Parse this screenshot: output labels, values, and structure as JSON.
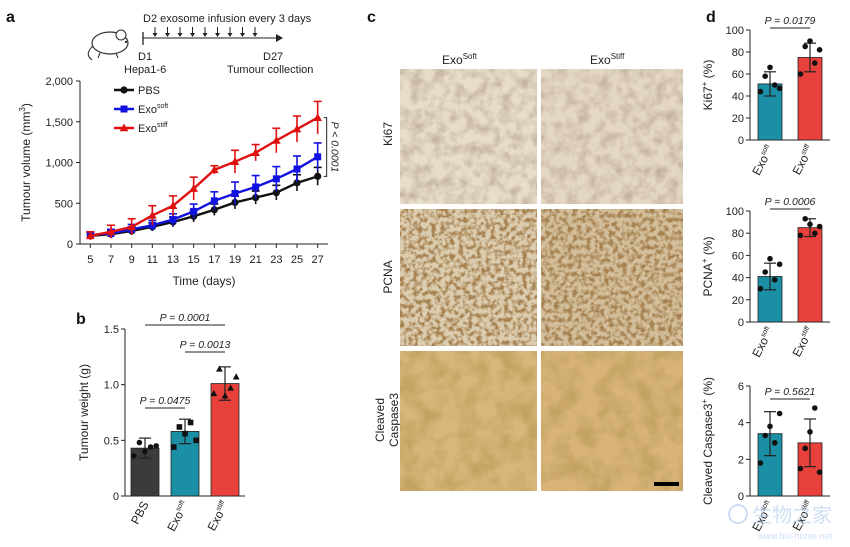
{
  "panels": {
    "a": "a",
    "b": "b",
    "c": "c",
    "d": "d"
  },
  "schema_a": {
    "top_text": "D2 exosome infusion every 3 days",
    "start_label": "D1",
    "start_sub": "Hepa1-6",
    "end_label": "D27",
    "end_sub": "Tumour collection"
  },
  "micrograph": {
    "col_labels": [
      "Exo",
      "Exo"
    ],
    "col_sups": [
      "Soft",
      "Stiff"
    ],
    "row_labels": [
      "Ki67",
      "PCNA",
      "Cleaved Caspase3"
    ],
    "row_label_lines": [
      [
        "Ki67"
      ],
      [
        "PCNA"
      ],
      [
        "Cleaved",
        "Caspase3"
      ]
    ]
  },
  "watermark": {
    "text": "生物之家",
    "url": "www.bio-home.net"
  },
  "chart_data": [
    {
      "id": "a",
      "type": "line",
      "xlabel": "Time (days)",
      "ylabel": "Tumour volume (mm",
      "ylabel_sup": "3",
      "ylabel_tail": ")",
      "ylim": [
        0,
        2000
      ],
      "yticks": [
        "0",
        "500",
        "1,000",
        "1,500",
        "2,000"
      ],
      "ytick_values": [
        0,
        500,
        1000,
        1500,
        2000
      ],
      "x": [
        5,
        7,
        9,
        11,
        13,
        15,
        17,
        19,
        21,
        23,
        25,
        27
      ],
      "series": [
        {
          "name": "PBS",
          "name_sup": "",
          "color": "#111111",
          "marker": "circle",
          "values": [
            100,
            120,
            160,
            210,
            270,
            340,
            420,
            510,
            570,
            630,
            750,
            830
          ],
          "err": [
            40,
            40,
            50,
            50,
            60,
            70,
            70,
            80,
            80,
            90,
            100,
            110
          ]
        },
        {
          "name": "Exo",
          "name_sup": "soft",
          "color": "#1212e0",
          "marker": "square",
          "values": [
            110,
            130,
            180,
            230,
            300,
            400,
            530,
            620,
            700,
            800,
            920,
            1070
          ],
          "err": [
            40,
            50,
            60,
            60,
            70,
            90,
            110,
            140,
            140,
            150,
            160,
            170
          ]
        },
        {
          "name": "Exo",
          "name_sup": "stiff",
          "color": "#e01010",
          "marker": "triangle",
          "values": [
            100,
            150,
            210,
            350,
            470,
            680,
            910,
            1010,
            1120,
            1270,
            1410,
            1550
          ],
          "err": [
            50,
            80,
            100,
            120,
            120,
            140,
            50,
            140,
            100,
            150,
            160,
            200
          ]
        }
      ],
      "annotation": "P < 0.0001"
    },
    {
      "id": "b",
      "type": "bar",
      "ylabel": "Tumour weight (g)",
      "ylim": [
        0,
        1.5
      ],
      "yticks": [
        "0",
        "0.5",
        "1.0",
        "1.5"
      ],
      "ytick_values": [
        0,
        0.5,
        1.0,
        1.5
      ],
      "categories": [
        "PBS",
        "Exo",
        "Exo"
      ],
      "category_sups": [
        "",
        "soft",
        "stiff"
      ],
      "values": [
        0.43,
        0.58,
        1.01
      ],
      "err": [
        0.09,
        0.11,
        0.15
      ],
      "colors": [
        "#3b3b3b",
        "#1a8fa6",
        "#e8403a"
      ],
      "points": [
        [
          0.36,
          0.48,
          0.4,
          0.44,
          0.45
        ],
        [
          0.44,
          0.62,
          0.56,
          0.66,
          0.5
        ],
        [
          0.92,
          1.14,
          0.9,
          0.97,
          1.07
        ]
      ],
      "comparisons": [
        {
          "from": 0,
          "to": 2,
          "label": "P = 0.0001"
        },
        {
          "from": 1,
          "to": 2,
          "label": "P = 0.0013"
        },
        {
          "from": 0,
          "to": 1,
          "label": "P = 0.0475"
        }
      ]
    },
    {
      "id": "d1",
      "type": "bar",
      "ylabel": "Ki67",
      "ylabel_sup": "+",
      "ylabel_tail": " (%)",
      "ylim": [
        0,
        100
      ],
      "yticks": [
        "0",
        "20",
        "40",
        "60",
        "80",
        "100"
      ],
      "ytick_values": [
        0,
        20,
        40,
        60,
        80,
        100
      ],
      "categories": [
        "Exo",
        "Exo"
      ],
      "category_sups": [
        "soft",
        "stiff"
      ],
      "values": [
        51,
        75
      ],
      "err": [
        11,
        13
      ],
      "colors": [
        "#1a8fa6",
        "#e8403a"
      ],
      "points": [
        [
          44,
          58,
          66,
          50,
          47
        ],
        [
          60,
          85,
          90,
          70,
          82
        ]
      ],
      "comparisons": [
        {
          "from": 0,
          "to": 1,
          "label": "P = 0.0179"
        }
      ]
    },
    {
      "id": "d2",
      "type": "bar",
      "ylabel": "PCNA",
      "ylabel_sup": "+",
      "ylabel_tail": " (%)",
      "ylim": [
        0,
        100
      ],
      "yticks": [
        "0",
        "20",
        "40",
        "60",
        "80",
        "100"
      ],
      "ytick_values": [
        0,
        20,
        40,
        60,
        80,
        100
      ],
      "categories": [
        "Exo",
        "Exo"
      ],
      "category_sups": [
        "soft",
        "stiff"
      ],
      "values": [
        41,
        85
      ],
      "err": [
        12,
        8
      ],
      "colors": [
        "#1a8fa6",
        "#e8403a"
      ],
      "points": [
        [
          30,
          45,
          57,
          38,
          52
        ],
        [
          78,
          93,
          88,
          80,
          86
        ]
      ],
      "comparisons": [
        {
          "from": 0,
          "to": 1,
          "label": "P = 0.0006"
        }
      ]
    },
    {
      "id": "d3",
      "type": "bar",
      "ylabel": "Cleaved Caspase3",
      "ylabel_sup": "+",
      "ylabel_tail": " (%)",
      "ylim": [
        0,
        6
      ],
      "yticks": [
        "0",
        "2",
        "4",
        "6"
      ],
      "ytick_values": [
        0,
        2,
        4,
        6
      ],
      "categories": [
        "Exo",
        "Exo"
      ],
      "category_sups": [
        "soft",
        "stiff"
      ],
      "values": [
        3.4,
        2.9
      ],
      "err": [
        1.2,
        1.3
      ],
      "colors": [
        "#1a8fa6",
        "#e8403a"
      ],
      "points": [
        [
          1.8,
          3.3,
          3.8,
          2.9,
          4.5
        ],
        [
          1.5,
          2.6,
          3.5,
          4.8,
          1.3
        ]
      ],
      "comparisons": [
        {
          "from": 0,
          "to": 1,
          "label": "P = 0.5621"
        }
      ]
    }
  ]
}
